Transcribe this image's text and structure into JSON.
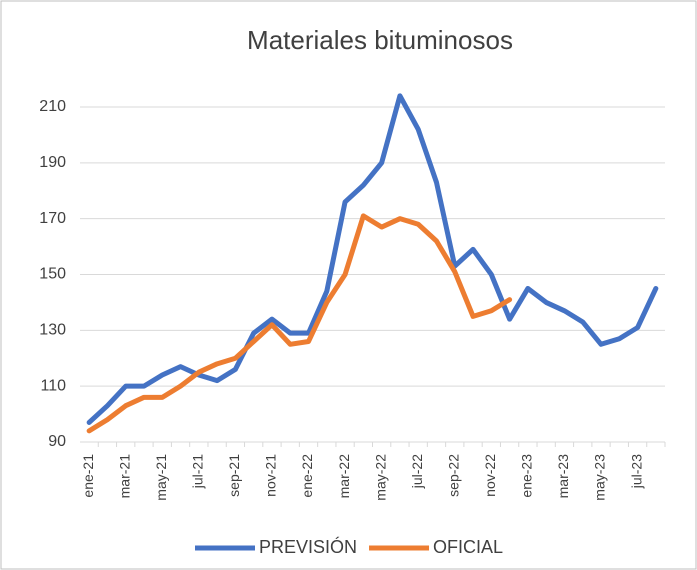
{
  "chart_data": {
    "type": "line",
    "title": "Materiales bituminosos",
    "categories": [
      "ene-21",
      null,
      "mar-21",
      null,
      "may-21",
      null,
      "jul-21",
      null,
      "sep-21",
      null,
      "nov-21",
      null,
      "ene-22",
      null,
      "mar-22",
      null,
      "may-22",
      null,
      "jul-22",
      null,
      "sep-22",
      null,
      "nov-22",
      null,
      "ene-23",
      null,
      "mar-23",
      null,
      "may-23",
      null,
      "jul-23",
      null
    ],
    "series": [
      {
        "name": "PREVISIÓN",
        "color": "#4472c4",
        "values": [
          97,
          103,
          110,
          110,
          114,
          117,
          114,
          112,
          116,
          129,
          134,
          129,
          129,
          144,
          176,
          182,
          190,
          214,
          202,
          183,
          153,
          159,
          150,
          134,
          145,
          140,
          137,
          133,
          125,
          127,
          131,
          145
        ]
      },
      {
        "name": "OFICIAL",
        "color": "#ed7d31",
        "values": [
          94,
          98,
          103,
          106,
          106,
          110,
          115,
          118,
          120,
          126,
          132,
          125,
          126,
          140,
          150,
          171,
          167,
          170,
          168,
          162,
          151,
          135,
          137,
          141,
          null,
          null,
          null,
          null,
          null,
          null,
          null,
          null
        ]
      }
    ],
    "ylim": [
      90,
      210
    ],
    "yticks": [
      90,
      110,
      130,
      150,
      170,
      190,
      210
    ],
    "grid": true,
    "legend": "bottom"
  }
}
